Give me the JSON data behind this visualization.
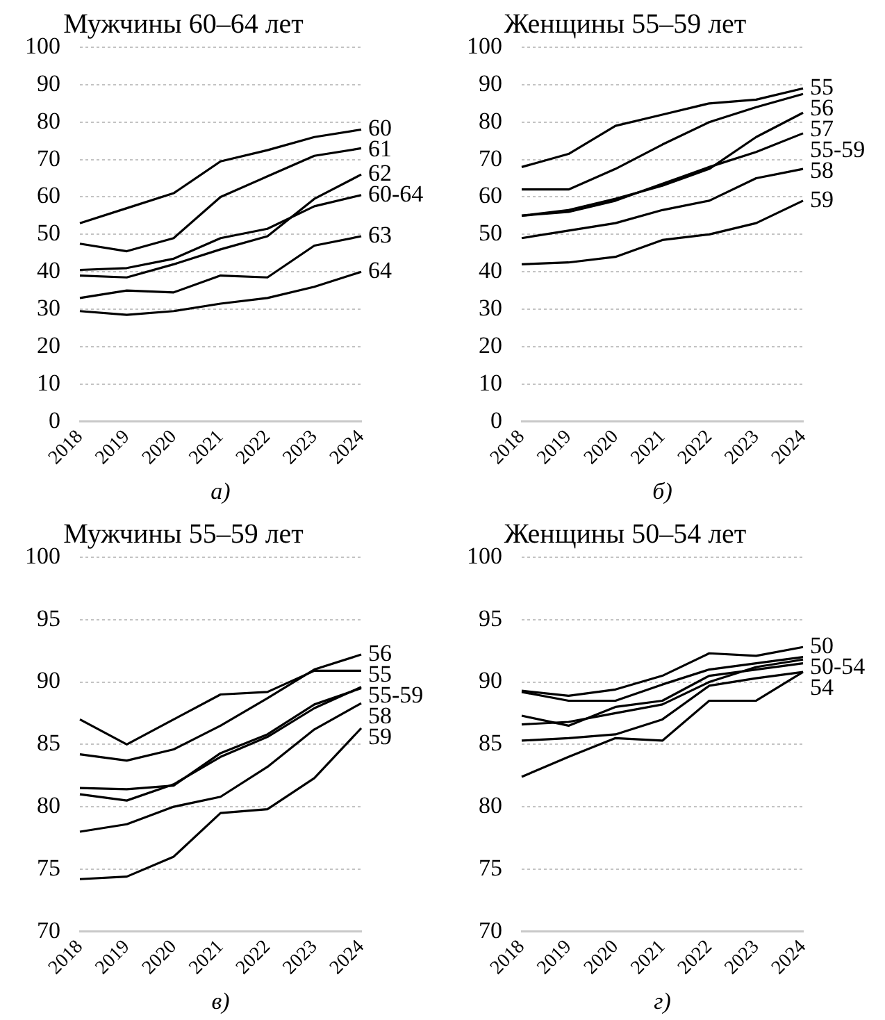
{
  "chart_data": [
    {
      "type": "line",
      "title": "Мужчины 60–64 лет",
      "categories": [
        "2018",
        "2019",
        "2020",
        "2021",
        "2022",
        "2023",
        "2024"
      ],
      "ylim": [
        0,
        100
      ],
      "yticks": [
        0,
        10,
        20,
        30,
        40,
        50,
        60,
        70,
        80,
        90,
        100
      ],
      "grid": "y",
      "legend": false,
      "marker": "none",
      "line_style": "solid",
      "annotations": [
        "а)"
      ],
      "series": [
        {
          "name": "60",
          "color": "#000000",
          "values": [
            53,
            57,
            61,
            69.5,
            72.5,
            76,
            78
          ]
        },
        {
          "name": "61",
          "color": "#000000",
          "values": [
            47.5,
            45.5,
            49,
            60,
            65.5,
            71,
            73
          ]
        },
        {
          "name": "62",
          "color": "#000000",
          "values": [
            39,
            38.5,
            42,
            46,
            49.5,
            59.5,
            66
          ]
        },
        {
          "name": "60-64",
          "color": "#000000",
          "values": [
            40.5,
            41,
            43.5,
            49,
            51.5,
            57.5,
            60.5
          ]
        },
        {
          "name": "63",
          "color": "#000000",
          "values": [
            33,
            35,
            34.5,
            39,
            38.5,
            47,
            49.5
          ]
        },
        {
          "name": "64",
          "color": "#000000",
          "values": [
            29.5,
            28.5,
            29.5,
            31.5,
            33,
            36,
            40
          ]
        }
      ]
    },
    {
      "type": "line",
      "title": "Женщины 55–59 лет",
      "categories": [
        "2018",
        "2019",
        "2020",
        "2021",
        "2022",
        "2023",
        "2024"
      ],
      "ylim": [
        0,
        100
      ],
      "yticks": [
        0,
        10,
        20,
        30,
        40,
        50,
        60,
        70,
        80,
        90,
        100
      ],
      "grid": "y",
      "legend": false,
      "marker": "none",
      "line_style": "solid",
      "annotations": [
        "б)"
      ],
      "series": [
        {
          "name": "55",
          "color": "#000000",
          "values": [
            68,
            71.5,
            79,
            82,
            85,
            86,
            89
          ]
        },
        {
          "name": "56",
          "color": "#000000",
          "values": [
            62,
            62,
            67.5,
            74,
            80,
            84,
            87.5
          ]
        },
        {
          "name": "57",
          "color": "#000000",
          "values": [
            55,
            56.5,
            59.5,
            63,
            67.5,
            76,
            82.5
          ]
        },
        {
          "name": "55-59",
          "color": "#000000",
          "values": [
            55,
            56,
            59,
            63.5,
            68,
            72,
            77
          ]
        },
        {
          "name": "58",
          "color": "#000000",
          "values": [
            49,
            51,
            53,
            56.5,
            59,
            65,
            67.5
          ]
        },
        {
          "name": "59",
          "color": "#000000",
          "values": [
            42,
            42.5,
            44,
            48.5,
            50,
            53,
            59
          ]
        }
      ]
    },
    {
      "type": "line",
      "title": "Мужчины 55–59 лет",
      "categories": [
        "2018",
        "2019",
        "2020",
        "2021",
        "2022",
        "2023",
        "2024"
      ],
      "ylim": [
        70,
        100
      ],
      "yticks": [
        70,
        75,
        80,
        85,
        90,
        95,
        100
      ],
      "grid": "y",
      "legend": false,
      "marker": "none",
      "line_style": "solid",
      "annotations": [
        "в)"
      ],
      "series": [
        {
          "name": "55",
          "color": "#000000",
          "values": [
            87,
            85,
            87,
            89,
            89.2,
            90.9,
            90.9
          ]
        },
        {
          "name": "56",
          "color": "#000000",
          "values": [
            84.2,
            83.7,
            84.6,
            86.5,
            88.7,
            91,
            92.2
          ]
        },
        {
          "color": "#000000",
          "values": [
            81.5,
            81.4,
            81.7,
            84.3,
            85.8,
            88.2,
            89.5
          ]
        },
        {
          "name": "55-59",
          "color": "#000000",
          "values": [
            81,
            80.5,
            81.8,
            84,
            85.6,
            87.9,
            89.6
          ]
        },
        {
          "name": "58",
          "color": "#000000",
          "values": [
            78,
            78.6,
            80,
            80.8,
            83.2,
            86.2,
            88.3
          ]
        },
        {
          "name": "59",
          "color": "#000000",
          "values": [
            74.2,
            74.4,
            76,
            79.5,
            79.8,
            82.3,
            86.3
          ]
        }
      ]
    },
    {
      "type": "line",
      "title": "Женщины 50–54 лет",
      "categories": [
        "2018",
        "2019",
        "2020",
        "2021",
        "2022",
        "2023",
        "2024"
      ],
      "ylim": [
        70,
        100
      ],
      "yticks": [
        70,
        75,
        80,
        85,
        90,
        95,
        100
      ],
      "grid": "y",
      "legend": false,
      "marker": "none",
      "line_style": "solid",
      "annotations": [
        "г)"
      ],
      "series": [
        {
          "name": "50",
          "color": "#000000",
          "values": [
            89.3,
            88.9,
            89.4,
            90.5,
            92.3,
            92.1,
            92.8
          ]
        },
        {
          "color": "#000000",
          "values": [
            89.2,
            88.5,
            88.5,
            89.8,
            91,
            91.5,
            92
          ]
        },
        {
          "name": "50-54",
          "color": "#000000",
          "values": [
            86.6,
            86.8,
            87.5,
            88.2,
            90,
            91.2,
            91.8
          ]
        },
        {
          "color": "#000000",
          "values": [
            87.3,
            86.5,
            88,
            88.5,
            90.5,
            91,
            91.5
          ]
        },
        {
          "color": "#000000",
          "values": [
            85.3,
            85.5,
            85.8,
            87,
            89.7,
            90.3,
            90.8
          ]
        },
        {
          "name": "54",
          "color": "#000000",
          "values": [
            82.4,
            84,
            85.5,
            85.3,
            88.5,
            88.5,
            90.8
          ]
        }
      ]
    }
  ]
}
